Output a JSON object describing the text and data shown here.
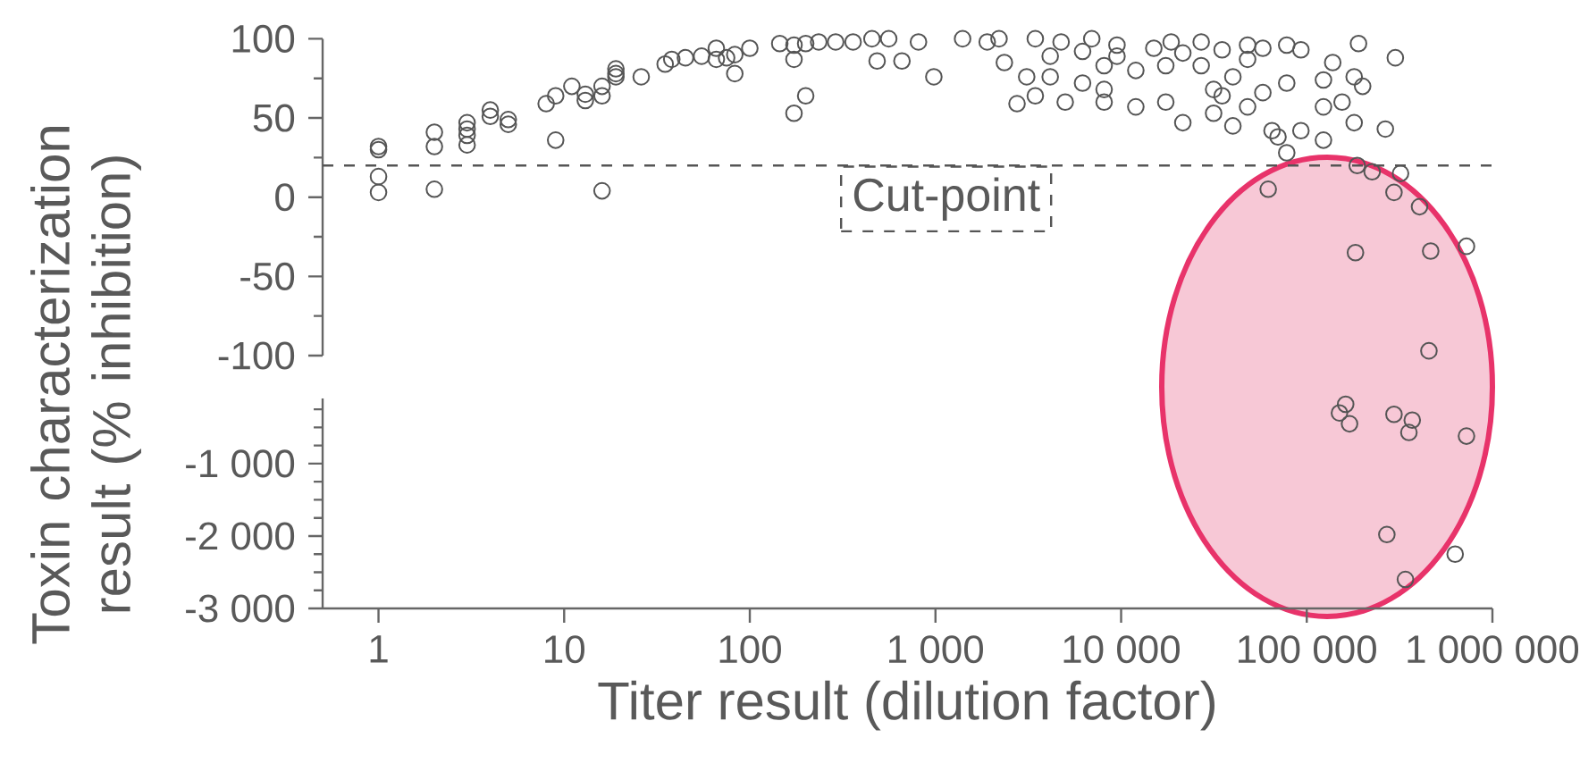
{
  "chart_data": [
    {
      "type": "scatter",
      "ylabel": "Toxin characterization result (% inhibition)",
      "log": "x",
      "xlim": [
        0.5,
        1000000
      ],
      "ylim": [
        -100,
        100
      ],
      "yticks": [
        -100,
        {
          "value": -75,
          "label": null
        },
        -50,
        {
          "value": -25,
          "label": null
        },
        0,
        {
          "value": 25,
          "label": null
        },
        50,
        {
          "value": 75,
          "label": null
        },
        100
      ],
      "tick_labels": "y",
      "grid": false,
      "marker": "circle",
      "ref_lines": [
        {
          "axis": "y",
          "value": 20,
          "label": "Cut-point",
          "line_style": "dashed",
          "color": "#555555"
        }
      ],
      "series": [
        {
          "color": "#555555",
          "x": [
            1,
            1,
            1,
            1,
            2,
            2,
            2,
            3,
            3,
            3,
            3,
            4,
            4,
            5,
            5,
            8,
            9,
            9,
            11,
            13,
            13,
            16,
            16,
            16,
            19,
            19,
            19,
            26,
            35,
            38,
            45,
            55,
            66,
            66,
            75,
            83,
            83,
            100,
            145,
            173,
            173,
            173,
            200,
            200,
            235,
            290,
            360,
            455,
            485,
            560,
            660,
            810,
            980,
            1400,
            1900,
            2200,
            2350,
            2750,
            3100,
            3450,
            3450,
            4150,
            4150,
            4750,
            5000,
            6200,
            6200,
            6950,
            8100,
            8100,
            8100,
            9500,
            9500,
            12000,
            12000,
            15000,
            17400,
            17400,
            18600,
            21500,
            21500,
            27000,
            27000,
            31500,
            31500,
            35000,
            35000,
            40000,
            40000,
            48000,
            48000,
            48000,
            58000,
            58000,
            65000,
            70000,
            78000,
            78000,
            78000,
            93000,
            93000,
            123000,
            123000,
            123000,
            138000,
            155000,
            180000,
            180000,
            190000,
            200000,
            265000,
            300000,
            62000,
            187000,
            225000,
            320000,
            295000,
            405000,
            183000,
            465000,
            725000,
            455000
          ],
          "values": [
            32,
            30,
            13,
            3,
            41,
            32,
            5,
            47,
            43,
            39,
            33,
            55,
            51,
            49,
            46,
            59,
            64,
            36,
            70,
            65,
            61,
            70,
            64,
            4,
            81,
            78,
            76,
            76,
            84,
            87,
            88,
            89,
            94,
            87,
            88,
            90,
            78,
            94,
            97,
            96,
            87,
            53,
            97,
            64,
            98,
            98,
            98,
            100,
            86,
            100,
            86,
            98,
            76,
            100,
            98,
            100,
            85,
            59,
            76,
            64,
            100,
            76,
            89,
            98,
            60,
            92,
            72,
            100,
            83,
            60,
            68,
            89,
            96,
            57,
            80,
            94,
            60,
            83,
            98,
            47,
            91,
            98,
            83,
            53,
            68,
            64,
            93,
            45,
            76,
            57,
            87,
            96,
            66,
            94,
            42,
            38,
            28,
            72,
            96,
            42,
            93,
            36,
            74,
            57,
            85,
            60,
            76,
            47,
            97,
            70,
            43,
            88,
            5,
            20,
            16,
            15,
            3,
            -6,
            -35,
            -34,
            -31,
            -97
          ]
        }
      ]
    },
    {
      "type": "scatter",
      "xlabel": "Titer result (dilution factor)",
      "log": "x",
      "xlim": [
        0.5,
        1000000
      ],
      "ylim": [
        -3000,
        -100
      ],
      "xticks": [
        1,
        10,
        100,
        {
          "value": 1000,
          "label": "1 000"
        },
        {
          "value": 10000,
          "label": "10 000"
        },
        {
          "value": 100000,
          "label": "100 000"
        },
        {
          "value": 1000000,
          "label": "1 000 000"
        }
      ],
      "yticks": [
        {
          "value": -3000,
          "label": "-3 000"
        },
        {
          "value": -2750,
          "label": null
        },
        {
          "value": -2500,
          "label": null
        },
        {
          "value": -2250,
          "label": null
        },
        {
          "value": -2000,
          "label": "-2 000"
        },
        {
          "value": -1750,
          "label": null
        },
        {
          "value": -1500,
          "label": null
        },
        {
          "value": -1250,
          "label": null
        },
        {
          "value": -1000,
          "label": "-1 000"
        },
        {
          "value": -750,
          "label": null
        },
        {
          "value": -500,
          "label": null
        },
        {
          "value": -250,
          "label": null
        }
      ],
      "grid": false,
      "marker": "circle",
      "series": [
        {
          "color": "#555555",
          "x": [
            162000,
            150000,
            170000,
            295000,
            370000,
            355000,
            725000,
            270000,
            630000,
            340000
          ],
          "values": [
            -180,
            -300,
            -450,
            -320,
            -400,
            -570,
            -620,
            -1980,
            -2250,
            -2600
          ]
        }
      ]
    }
  ]
}
